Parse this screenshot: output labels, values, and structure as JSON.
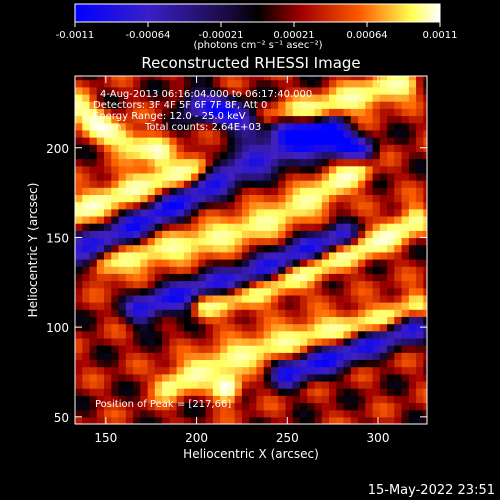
{
  "chart_data": {
    "type": "heatmap",
    "title": "Reconstructed RHESSI Image",
    "xlabel": "Heliocentric X (arcsec)",
    "ylabel": "Heliocentric Y (arcsec)",
    "xlim": [
      133,
      327
    ],
    "ylim": [
      46,
      240
    ],
    "xticks": [
      "150",
      "200",
      "250",
      "300"
    ],
    "yticks": [
      "50",
      "100",
      "150",
      "200"
    ],
    "colorbar": {
      "range": [
        -0.0011,
        0.0011
      ],
      "ticks": [
        "-0.0011",
        "-0.00064",
        "-0.00021",
        "0.00021",
        "0.00064",
        "0.0011"
      ],
      "unit_label": "(photons cm⁻² s⁻¹ asec⁻²)",
      "colormap": [
        "#0000ff",
        "#4020c0",
        "#000000",
        "#a00000",
        "#ff6000",
        "#ffff60",
        "#ffffff"
      ]
    },
    "annotations": {
      "time_range": "4-Aug-2013 06:16:04.000 to 06:17:40.000",
      "detectors": "Detectors: 3F 4F 5F 6F 7F 8F, Att 0",
      "energy": "Energy Range: 12.0 - 25.0 keV",
      "clean": "Clean",
      "counts": "Total counts: 2.64E+03",
      "peak": "Position of Peak = [217,66]"
    },
    "peak": {
      "x": 217,
      "y": 66
    },
    "features": {
      "bright_ridges": [
        {
          "x": [
            133,
            150,
            170,
            190,
            200
          ],
          "y": [
            165,
            172,
            180,
            186,
            190
          ]
        },
        {
          "x": [
            150,
            180,
            210,
            240,
            265,
            290
          ],
          "y": [
            135,
            143,
            150,
            160,
            172,
            188
          ]
        },
        {
          "x": [
            205,
            230,
            255,
            275,
            300,
            320
          ],
          "y": [
            112,
            118,
            128,
            138,
            148,
            160
          ]
        },
        {
          "x": [
            185,
            210,
            240,
            270,
            300,
            320
          ],
          "y": [
            68,
            80,
            90,
            98,
            104,
            112
          ]
        },
        {
          "x": [
            240,
            270,
            295,
            315
          ],
          "y": [
            216,
            222,
            230,
            236
          ]
        },
        {
          "x": [
            135,
            150,
            165,
            178
          ],
          "y": [
            222,
            210,
            202,
            198
          ]
        }
      ],
      "dark_bands": [
        {
          "x": [
            133,
            160,
            190,
            220,
            250,
            275
          ],
          "y": [
            140,
            152,
            170,
            188,
            200,
            210
          ]
        },
        {
          "x": [
            170,
            200,
            230,
            255,
            280
          ],
          "y": [
            110,
            120,
            128,
            140,
            150
          ]
        },
        {
          "x": [
            250,
            275,
            300,
            320
          ],
          "y": [
            75,
            84,
            94,
            102
          ]
        },
        {
          "x": [
            200,
            230,
            260,
            290
          ],
          "y": [
            225,
            215,
            210,
            198
          ]
        }
      ]
    }
  },
  "footer": {
    "date": "15-May-2022 23:51"
  }
}
